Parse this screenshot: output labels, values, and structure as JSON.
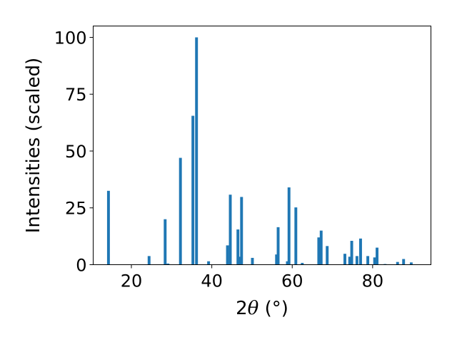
{
  "chart_data": {
    "type": "bar",
    "xlabel_math": "θ",
    "xlabel_prefix": "2",
    "xlabel_suffix": " (°)",
    "ylabel": "Intensities (scaled)",
    "xlim": [
      10.5,
      94.5
    ],
    "ylim": [
      0,
      105
    ],
    "xticks": [
      20,
      40,
      60,
      80
    ],
    "yticks": [
      0,
      25,
      50,
      75,
      100
    ],
    "bar_color": "#1f77b4",
    "bar_width": 0.7,
    "grid": false,
    "points": [
      {
        "x": 14.3,
        "y": 32.5
      },
      {
        "x": 24.4,
        "y": 3.8
      },
      {
        "x": 28.4,
        "y": 20.0
      },
      {
        "x": 29.1,
        "y": 0.5
      },
      {
        "x": 32.2,
        "y": 47.0
      },
      {
        "x": 35.3,
        "y": 65.5
      },
      {
        "x": 36.2,
        "y": 100.0
      },
      {
        "x": 39.2,
        "y": 1.5
      },
      {
        "x": 43.9,
        "y": 8.5
      },
      {
        "x": 44.6,
        "y": 30.8
      },
      {
        "x": 46.5,
        "y": 15.5
      },
      {
        "x": 46.9,
        "y": 3.5
      },
      {
        "x": 47.4,
        "y": 29.8
      },
      {
        "x": 50.1,
        "y": 3.0
      },
      {
        "x": 56.1,
        "y": 4.5
      },
      {
        "x": 56.5,
        "y": 16.5
      },
      {
        "x": 58.8,
        "y": 1.5
      },
      {
        "x": 59.2,
        "y": 34.0
      },
      {
        "x": 60.9,
        "y": 25.2
      },
      {
        "x": 62.5,
        "y": 0.8
      },
      {
        "x": 66.6,
        "y": 12.0
      },
      {
        "x": 67.2,
        "y": 15.0
      },
      {
        "x": 68.7,
        "y": 8.2
      },
      {
        "x": 73.1,
        "y": 4.8
      },
      {
        "x": 74.3,
        "y": 3.5
      },
      {
        "x": 74.8,
        "y": 10.5
      },
      {
        "x": 76.1,
        "y": 3.8
      },
      {
        "x": 77.0,
        "y": 11.5
      },
      {
        "x": 78.8,
        "y": 3.8
      },
      {
        "x": 80.5,
        "y": 3.2
      },
      {
        "x": 81.1,
        "y": 7.5
      },
      {
        "x": 83.1,
        "y": 0.3
      },
      {
        "x": 86.2,
        "y": 1.2
      },
      {
        "x": 87.7,
        "y": 2.5
      },
      {
        "x": 89.6,
        "y": 1.0
      }
    ]
  }
}
